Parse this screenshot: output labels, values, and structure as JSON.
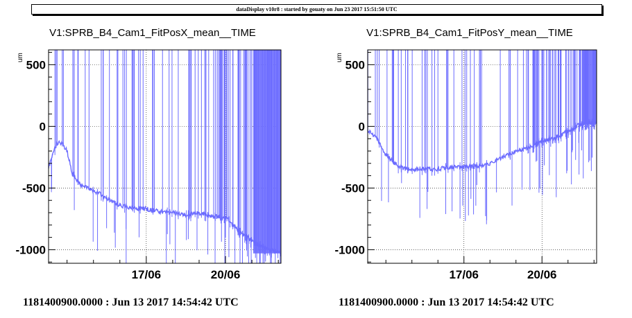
{
  "header": {
    "text": "dataDisplay v10r8 : started by gouaty on Jun 23 2017 15:51:50 UTC"
  },
  "colors": {
    "series": "#6b6bff",
    "grid": "#000000"
  },
  "chart_data": [
    {
      "type": "line",
      "title": "V1:SPRB_B4_Cam1_FitPosX_mean__TIME",
      "ylabel": "um",
      "ylim": [
        -1110,
        620
      ],
      "xlim": [
        13.3,
        22.1
      ],
      "yticks": [
        -1000,
        -500,
        0,
        500
      ],
      "ytick_labels": [
        "-1000",
        "-500",
        "0",
        "500"
      ],
      "xticks": [
        17.0,
        20.0
      ],
      "xtick_labels": [
        "17/06",
        "20/06"
      ],
      "grid": true,
      "x": [
        13.3,
        13.45,
        13.6,
        13.8,
        14.0,
        14.2,
        14.5,
        15.0,
        15.5,
        16.0,
        16.5,
        17.0,
        17.5,
        18.0,
        18.5,
        19.0,
        19.5,
        20.0,
        20.5,
        21.0,
        21.5,
        21.8,
        22.1
      ],
      "series": [
        {
          "values": [
            -330,
            -230,
            -140,
            -130,
            -200,
            -380,
            -470,
            -520,
            -580,
            -640,
            -660,
            -670,
            -690,
            -700,
            -720,
            -700,
            -730,
            -740,
            -850,
            -930,
            -990,
            -1010,
            -1020
          ]
        }
      ]
    },
    {
      "type": "line",
      "title": "V1:SPRB_B4_Cam1_FitPosY_mean__TIME",
      "ylabel": "um",
      "ylim": [
        -1110,
        620
      ],
      "xlim": [
        13.3,
        22.1
      ],
      "yticks": [
        -1000,
        -500,
        0,
        500
      ],
      "ytick_labels": [
        "-1000",
        "-500",
        "0",
        "500"
      ],
      "xticks": [
        17.0,
        20.0
      ],
      "xtick_labels": [
        "17/06",
        "20/06"
      ],
      "grid": true,
      "x": [
        13.3,
        13.6,
        14.0,
        14.5,
        15.0,
        15.5,
        16.0,
        16.5,
        17.0,
        17.5,
        18.0,
        18.5,
        19.0,
        19.5,
        20.0,
        20.5,
        21.0,
        21.5,
        22.1
      ],
      "series": [
        {
          "values": [
            -30,
            -80,
            -230,
            -330,
            -350,
            -345,
            -345,
            -330,
            -330,
            -320,
            -300,
            -250,
            -200,
            -170,
            -120,
            -100,
            -40,
            20,
            30
          ]
        }
      ]
    }
  ],
  "footers": [
    {
      "text": "1181400900.0000 : Jun 13 2017 14:54:42 UTC"
    },
    {
      "text": "1181400900.0000 : Jun 13 2017 14:54:42 UTC"
    }
  ]
}
